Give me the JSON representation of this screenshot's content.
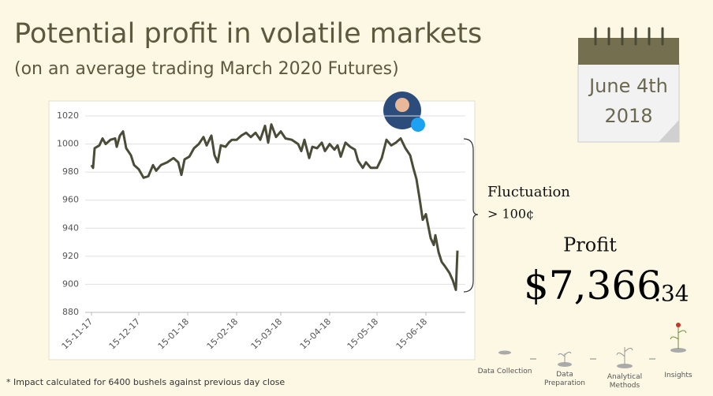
{
  "header": {
    "title": "Potential profit in volatile markets",
    "subtitle": "(on an average trading March 2020 Futures)"
  },
  "calendar": {
    "date": "June 4th",
    "year": "2018"
  },
  "annotation": {
    "line1": "Fluctuation",
    "line2": "> 100¢"
  },
  "profit": {
    "label": "Profit",
    "main": "$7,366",
    "cents": ".34"
  },
  "footnote": "* Impact calculated for 6400 bushels against previous day close",
  "process": {
    "steps": [
      "Data Collection",
      "Data Preparation",
      "Analytical Methods",
      "Insights"
    ]
  },
  "chart_data": {
    "type": "line",
    "color": "#4a4c38",
    "grid": true,
    "xlim": [
      "2017-11-11",
      "2018-07-10"
    ],
    "xticks": [
      {
        "value": "2017-11-15",
        "label": "15-11-17"
      },
      {
        "value": "2017-12-15",
        "label": "15-12-17"
      },
      {
        "value": "2018-01-15",
        "label": "15-01-18"
      },
      {
        "value": "2018-02-15",
        "label": "15-02-18"
      },
      {
        "value": "2018-03-15",
        "label": "15-03-18"
      },
      {
        "value": "2018-04-15",
        "label": "15-04-18"
      },
      {
        "value": "2018-05-15",
        "label": "15-05-18"
      },
      {
        "value": "2018-06-15",
        "label": "15-06-18"
      }
    ],
    "ylim": [
      880,
      1020
    ],
    "yticks": [
      880,
      900,
      920,
      940,
      960,
      980,
      1000,
      1020
    ],
    "x": [
      "2017-11-15",
      "2017-11-16",
      "2017-11-17",
      "2017-11-20",
      "2017-11-22",
      "2017-11-24",
      "2017-11-27",
      "2017-11-30",
      "2017-12-01",
      "2017-12-03",
      "2017-12-05",
      "2017-12-07",
      "2017-12-10",
      "2017-12-12",
      "2017-12-15",
      "2017-12-18",
      "2017-12-21",
      "2017-12-24",
      "2017-12-26",
      "2017-12-29",
      "2018-01-02",
      "2018-01-06",
      "2018-01-09",
      "2018-01-11",
      "2018-01-13",
      "2018-01-16",
      "2018-01-19",
      "2018-01-22",
      "2018-01-25",
      "2018-01-27",
      "2018-01-30",
      "2018-02-01",
      "2018-02-03",
      "2018-02-05",
      "2018-02-08",
      "2018-02-10",
      "2018-02-12",
      "2018-02-15",
      "2018-02-18",
      "2018-02-21",
      "2018-02-24",
      "2018-02-27",
      "2018-03-02",
      "2018-03-05",
      "2018-03-07",
      "2018-03-09",
      "2018-03-12",
      "2018-03-15",
      "2018-03-18",
      "2018-03-22",
      "2018-03-26",
      "2018-03-28",
      "2018-03-30",
      "2018-04-02",
      "2018-04-04",
      "2018-04-07",
      "2018-04-10",
      "2018-04-12",
      "2018-04-15",
      "2018-04-18",
      "2018-04-20",
      "2018-04-22",
      "2018-04-25",
      "2018-04-28",
      "2018-05-01",
      "2018-05-03",
      "2018-05-06",
      "2018-05-08",
      "2018-05-11",
      "2018-05-15",
      "2018-05-18",
      "2018-05-21",
      "2018-05-24",
      "2018-05-27",
      "2018-05-30",
      "2018-06-02",
      "2018-06-05",
      "2018-06-07",
      "2018-06-09",
      "2018-06-11",
      "2018-06-13",
      "2018-06-15",
      "2018-06-18",
      "2018-06-20",
      "2018-06-21",
      "2018-06-23",
      "2018-06-25",
      "2018-06-27",
      "2018-06-30",
      "2018-07-02",
      "2018-07-04",
      "2018-07-05"
    ],
    "values": [
      985,
      983,
      997,
      999,
      1004,
      1000,
      1003,
      1004,
      998,
      1006,
      1009,
      997,
      992,
      985,
      982,
      976,
      977,
      985,
      981,
      985,
      987,
      990,
      987,
      978,
      989,
      991,
      997,
      1000,
      1005,
      999,
      1006,
      992,
      987,
      999,
      998,
      1001,
      1003,
      1003,
      1006,
      1008,
      1005,
      1008,
      1003,
      1013,
      1001,
      1014,
      1005,
      1009,
      1004,
      1003,
      1000,
      995,
      1003,
      990,
      998,
      997,
      1001,
      995,
      1000,
      996,
      999,
      991,
      1001,
      998,
      996,
      988,
      983,
      987,
      983,
      983,
      990,
      1003,
      999,
      1001,
      1004,
      997,
      992,
      983,
      975,
      961,
      946,
      950,
      933,
      928,
      935,
      923,
      916,
      913,
      908,
      903,
      896,
      924
    ]
  }
}
